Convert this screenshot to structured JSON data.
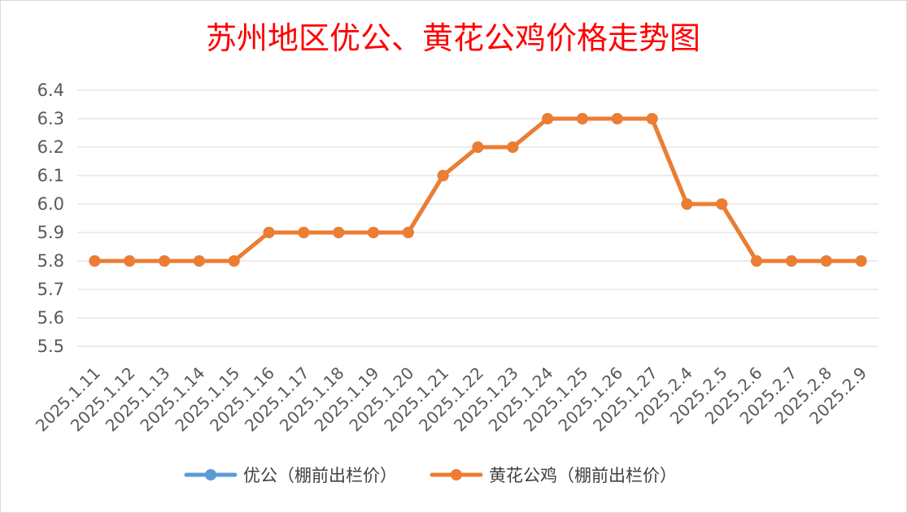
{
  "chart_data": {
    "type": "line",
    "title": "苏州地区优公、黄花公鸡价格走势图",
    "xlabel": "",
    "ylabel": "",
    "categories": [
      "2025.1.11",
      "2025.1.12",
      "2025.1.13",
      "2025.1.14",
      "2025.1.15",
      "2025.1.16",
      "2025.1.17",
      "2025.1.18",
      "2025.1.19",
      "2025.1.20",
      "2025.1.21",
      "2025.1.22",
      "2025.1.23",
      "2025.1.24",
      "2025.1.25",
      "2025.1.26",
      "2025.1.27",
      "2025.2.4",
      "2025.2.5",
      "2025.2.6",
      "2025.2.7",
      "2025.2.8",
      "2025.2.9"
    ],
    "yticks": [
      "5.5",
      "5.6",
      "5.7",
      "5.8",
      "5.9",
      "6.0",
      "6.1",
      "6.2",
      "6.3",
      "6.4"
    ],
    "ylim": [
      5.5,
      6.4
    ],
    "grid": true,
    "legend_position": "bottom",
    "series": [
      {
        "name": "优公（棚前出栏价）",
        "color": "#5b9bd5",
        "values": [
          5.8,
          5.8,
          5.8,
          5.8,
          5.8,
          5.9,
          5.9,
          5.9,
          5.9,
          5.9,
          6.1,
          6.2,
          6.2,
          6.3,
          6.3,
          6.3,
          6.3,
          6.0,
          6.0,
          5.8,
          5.8,
          5.8,
          5.8
        ]
      },
      {
        "name": "黄花公鸡（棚前出栏价）",
        "color": "#ed7d31",
        "values": [
          5.8,
          5.8,
          5.8,
          5.8,
          5.8,
          5.9,
          5.9,
          5.9,
          5.9,
          5.9,
          6.1,
          6.2,
          6.2,
          6.3,
          6.3,
          6.3,
          6.3,
          6.0,
          6.0,
          5.8,
          5.8,
          5.8,
          5.8
        ]
      }
    ]
  }
}
